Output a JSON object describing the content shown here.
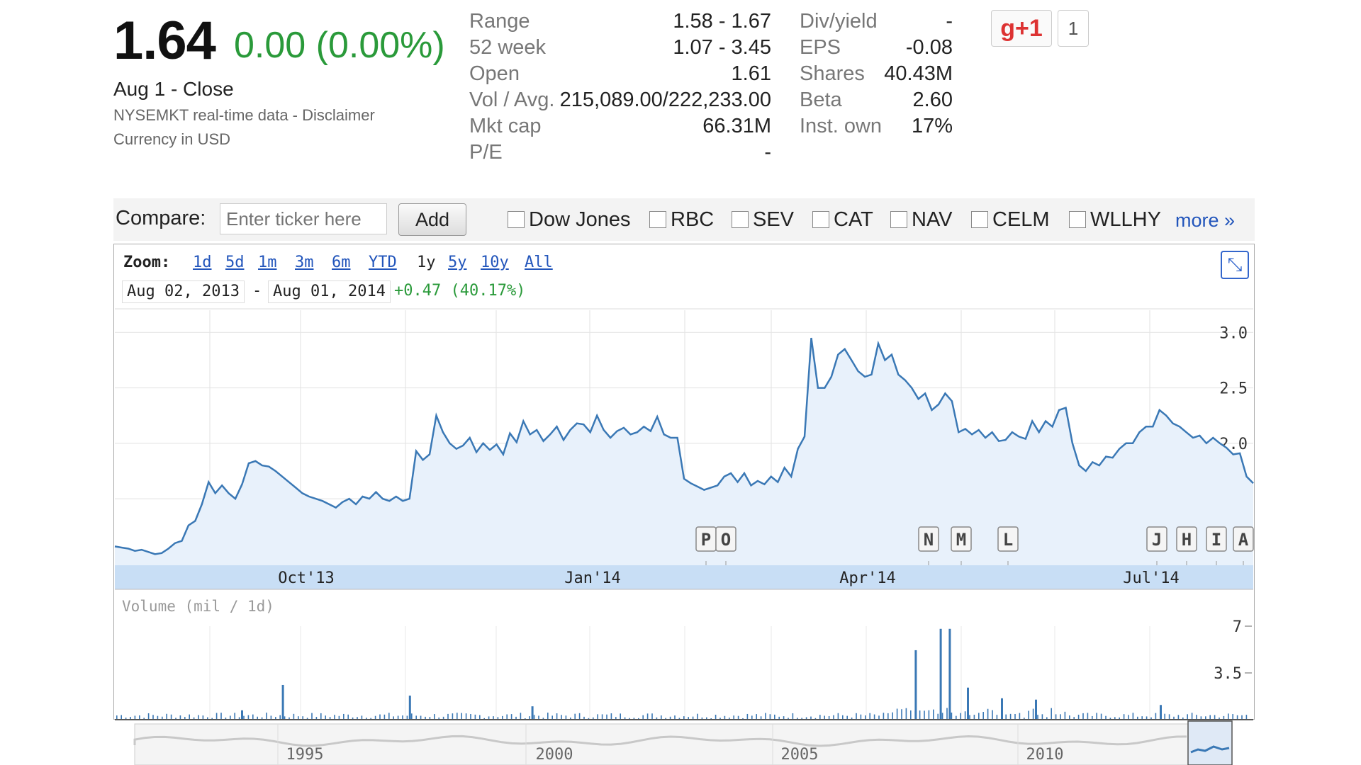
{
  "quote": {
    "price": "1.64",
    "change": "0.00 (0.00%)",
    "close_label": "Aug 1 - Close",
    "data_source": "NYSEMKT real-time data - Disclaimer",
    "currency": "Currency in USD"
  },
  "stats_left": [
    {
      "label": "Range",
      "value": "1.58 - 1.67"
    },
    {
      "label": "52 week",
      "value": "1.07 - 3.45"
    },
    {
      "label": "Open",
      "value": "1.61"
    },
    {
      "label": "Vol / Avg.",
      "value": "215,089.00/222,233.00"
    },
    {
      "label": "Mkt cap",
      "value": "66.31M"
    },
    {
      "label": "P/E",
      "value": "-"
    }
  ],
  "stats_right": [
    {
      "label": "Div/yield",
      "value": "-"
    },
    {
      "label": "EPS",
      "value": "-0.08"
    },
    {
      "label": "Shares",
      "value": "40.43M"
    },
    {
      "label": "Beta",
      "value": "2.60"
    },
    {
      "label": "Inst. own",
      "value": "17%"
    }
  ],
  "social": {
    "gplus_label": "g+1",
    "count": "1"
  },
  "compare": {
    "label": "Compare:",
    "placeholder": "Enter ticker here",
    "add_label": "Add",
    "tickers": [
      "Dow Jones",
      "RBC",
      "SEV",
      "CAT",
      "NAV",
      "CELM",
      "WLLHY"
    ],
    "more_label": "more »"
  },
  "zoom": {
    "label": "Zoom:",
    "options": [
      "1d",
      "5d",
      "1m",
      "3m",
      "6m",
      "YTD",
      "1y",
      "5y",
      "10y",
      "All"
    ],
    "selected": "1y"
  },
  "date_range": {
    "start": "Aug 02, 2013",
    "sep": "-",
    "end": "Aug 01, 2014",
    "change": "+0.47 (40.17%)"
  },
  "colors": {
    "line": "#3a78b5",
    "fill": "#e8f1fb",
    "positive": "#2a9a3a",
    "link": "#2255bb"
  },
  "chart_data": {
    "type": "line",
    "price": {
      "x_ticks": [
        "Oct'13",
        "Jan'14",
        "Apr'14",
        "Jul'14"
      ],
      "y_ticks": [
        "3.0",
        "2.5",
        "2.0",
        "1.5"
      ],
      "ylim": [
        0.9,
        3.2
      ],
      "values": [
        1.07,
        1.06,
        1.05,
        1.03,
        1.04,
        1.02,
        1.0,
        1.01,
        1.05,
        1.1,
        1.12,
        1.26,
        1.3,
        1.45,
        1.65,
        1.55,
        1.62,
        1.55,
        1.5,
        1.63,
        1.82,
        1.84,
        1.8,
        1.79,
        1.75,
        1.7,
        1.65,
        1.6,
        1.55,
        1.52,
        1.5,
        1.48,
        1.45,
        1.42,
        1.47,
        1.5,
        1.45,
        1.52,
        1.5,
        1.56,
        1.5,
        1.48,
        1.52,
        1.48,
        1.5,
        1.93,
        1.85,
        1.9,
        2.25,
        2.1,
        2.0,
        1.95,
        1.98,
        2.05,
        1.92,
        2.0,
        1.94,
        1.99,
        1.9,
        2.09,
        2.01,
        2.2,
        2.08,
        2.12,
        2.02,
        2.08,
        2.15,
        2.03,
        2.12,
        2.18,
        2.17,
        2.1,
        2.25,
        2.12,
        2.05,
        2.11,
        2.14,
        2.08,
        2.1,
        2.15,
        2.11,
        2.24,
        2.08,
        2.05,
        2.05,
        1.68,
        1.64,
        1.61,
        1.58,
        1.6,
        1.62,
        1.7,
        1.73,
        1.65,
        1.73,
        1.62,
        1.66,
        1.63,
        1.7,
        1.65,
        1.78,
        1.7,
        1.95,
        2.06,
        2.95,
        2.5,
        2.5,
        2.6,
        2.8,
        2.85,
        2.75,
        2.65,
        2.6,
        2.62,
        2.9,
        2.75,
        2.8,
        2.62,
        2.57,
        2.5,
        2.4,
        2.45,
        2.3,
        2.35,
        2.45,
        2.38,
        2.1,
        2.13,
        2.08,
        2.12,
        2.05,
        2.1,
        2.02,
        2.03,
        2.1,
        2.06,
        2.04,
        2.2,
        2.1,
        2.2,
        2.15,
        2.3,
        2.32,
        2.0,
        1.8,
        1.75,
        1.83,
        1.8,
        1.88,
        1.87,
        1.95,
        2.0,
        2.0,
        2.1,
        2.15,
        2.15,
        2.3,
        2.25,
        2.18,
        2.15,
        2.1,
        2.05,
        2.07,
        2.0,
        2.05,
        2.0,
        1.96,
        1.9,
        1.91,
        1.7,
        1.64
      ]
    },
    "events": [
      "P",
      "O",
      "N",
      "M",
      "L",
      "J",
      "H",
      "I",
      "A"
    ],
    "volume": {
      "title": "Volume (mil / 1d)",
      "y_ticks": [
        "7",
        "3.5"
      ],
      "ylim": [
        0,
        7
      ],
      "spikes": [
        {
          "i": 55,
          "v": 0.7
        },
        {
          "i": 73,
          "v": 2.6
        },
        {
          "i": 129,
          "v": 1.8
        },
        {
          "i": 183,
          "v": 1.0
        },
        {
          "i": 352,
          "v": 5.2
        },
        {
          "i": 363,
          "v": 6.8
        },
        {
          "i": 367,
          "v": 6.8
        },
        {
          "i": 375,
          "v": 2.4
        },
        {
          "i": 390,
          "v": 1.6
        },
        {
          "i": 405,
          "v": 1.5
        },
        {
          "i": 460,
          "v": 1.1
        }
      ]
    },
    "navigator": {
      "x_ticks": [
        "1995",
        "2000",
        "2005",
        "2010"
      ]
    }
  }
}
